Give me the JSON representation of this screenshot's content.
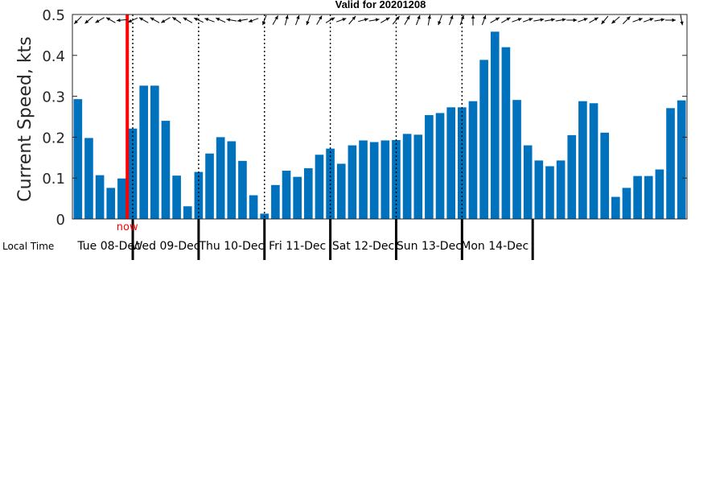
{
  "chart_data": {
    "type": "bar",
    "title": "Valid for 20201208",
    "ylabel": "Current Speed, kts",
    "ylim": [
      0,
      0.5
    ],
    "yticks": [
      "0",
      "0.1",
      "0.2",
      "0.3",
      "0.4",
      "0.5"
    ],
    "ytick_values": [
      0,
      0.1,
      0.2,
      0.3,
      0.4,
      0.5
    ],
    "x_axis_caption": "Local Time",
    "now_label": "now",
    "now_index": 4.5,
    "bars_per_day": 6,
    "days": [
      "Tue 08-Dec",
      "Wed 09-Dec",
      "Thu 10-Dec",
      "Fri 11-Dec",
      "Sat 12-Dec",
      "Sun 13-Dec",
      "Mon 14-Dec"
    ],
    "values": [
      0.293,
      0.198,
      0.107,
      0.076,
      0.099,
      0.221,
      0.326,
      0.326,
      0.24,
      0.106,
      0.031,
      0.115,
      0.16,
      0.2,
      0.19,
      0.142,
      0.058,
      0.013,
      0.083,
      0.118,
      0.103,
      0.124,
      0.157,
      0.172,
      0.135,
      0.18,
      0.192,
      0.188,
      0.192,
      0.193,
      0.208,
      0.206,
      0.254,
      0.259,
      0.273,
      0.273,
      0.288,
      0.389,
      0.458,
      0.42,
      0.291,
      0.18,
      0.143,
      0.129,
      0.143,
      0.205,
      0.288,
      0.283,
      0.211,
      0.054,
      0.076,
      0.105,
      0.105,
      0.121,
      0.271,
      0.29
    ],
    "directions_deg": [
      225,
      230,
      240,
      300,
      265,
      245,
      300,
      300,
      240,
      305,
      300,
      295,
      290,
      295,
      280,
      260,
      250,
      200,
      30,
      15,
      20,
      200,
      30,
      60,
      70,
      40,
      75,
      80,
      60,
      40,
      30,
      20,
      10,
      200,
      20,
      20,
      0,
      20,
      60,
      60,
      70,
      70,
      80,
      80,
      80,
      90,
      70,
      60,
      220,
      230,
      45,
      70,
      70,
      80,
      90,
      170
    ],
    "colors": {
      "bar": "#0072bd",
      "now_line": "#ff0000"
    },
    "grid": false
  }
}
